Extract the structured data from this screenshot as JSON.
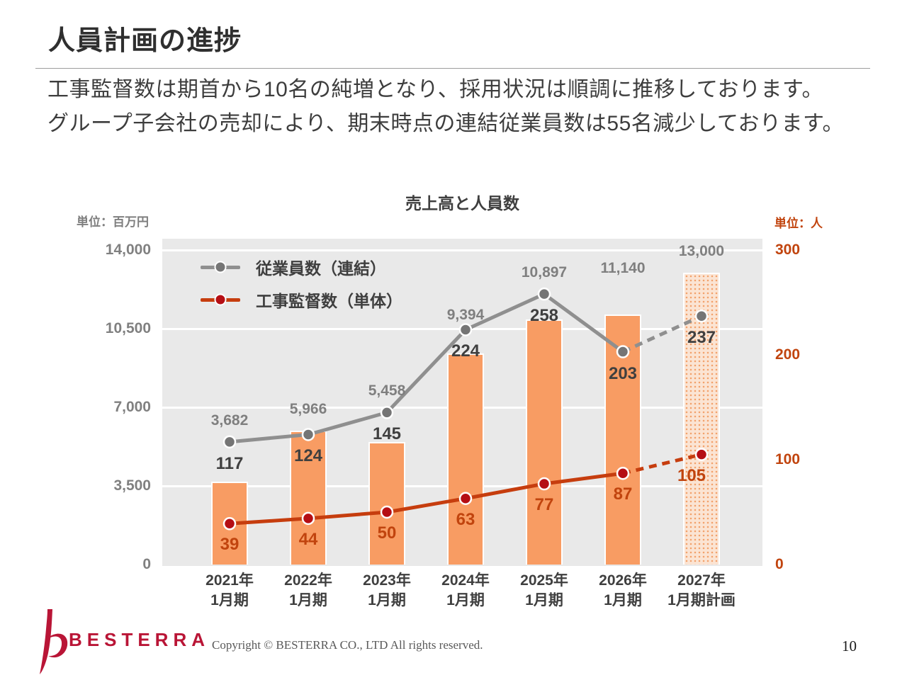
{
  "slide": {
    "title": "人員計画の進捗",
    "subtitle_line1": "工事監督数は期首から10名の純増となり、採用状況は順調に推移しております。",
    "subtitle_line2": "グループ子会社の売却により、期末時点の連結従業員数は55名減少しております。",
    "page_number": "10"
  },
  "footer": {
    "logo_text": "BESTERRA",
    "copyright": "Copyright © BESTERRA CO., LTD All rights reserved."
  },
  "chart_data": {
    "type": "bar",
    "title": "売上高と人員数",
    "categories": [
      {
        "line1": "2021年",
        "line2": "1月期"
      },
      {
        "line1": "2022年",
        "line2": "1月期"
      },
      {
        "line1": "2023年",
        "line2": "1月期"
      },
      {
        "line1": "2024年",
        "line2": "1月期"
      },
      {
        "line1": "2025年",
        "line2": "1月期"
      },
      {
        "line1": "2026年",
        "line2": "1月期"
      },
      {
        "line1": "2027年",
        "line2": "1月期計画"
      }
    ],
    "left_axis": {
      "unit_label": "単位：百万円",
      "max": 14000,
      "ticks": [
        {
          "label": "14,000",
          "value": 14000
        },
        {
          "label": "10,500",
          "value": 10500
        },
        {
          "label": "7,000",
          "value": 7000
        },
        {
          "label": "3,500",
          "value": 3500
        },
        {
          "label": "0",
          "value": 0
        }
      ]
    },
    "right_axis": {
      "unit_label": "単位：人",
      "max": 300,
      "ticks": [
        {
          "label": "300",
          "value": 300
        },
        {
          "label": "200",
          "value": 200
        },
        {
          "label": "100",
          "value": 100
        },
        {
          "label": "0",
          "value": 0
        }
      ]
    },
    "bars": {
      "name": "売上高",
      "axis": "left",
      "values": [
        3682,
        5966,
        5458,
        9394,
        10897,
        11140,
        13000
      ],
      "labels": [
        "3,682",
        "5,966",
        "5,458",
        "9,394",
        "10,897",
        "11,140",
        "13,000"
      ],
      "last_is_plan": true
    },
    "series": [
      {
        "id": "employees",
        "name": "従業員数（連結）",
        "axis": "right",
        "values": [
          117,
          124,
          145,
          224,
          258,
          203,
          237
        ],
        "labels": [
          "117",
          "124",
          "145",
          "224",
          "258",
          "203",
          "237"
        ],
        "last_segment_dashed": true
      },
      {
        "id": "supervisors",
        "name": "工事監督数（単体）",
        "axis": "right",
        "values": [
          39,
          44,
          50,
          63,
          77,
          87,
          105
        ],
        "labels": [
          "39",
          "44",
          "50",
          "63",
          "77",
          "87",
          "105"
        ],
        "last_segment_dashed": true
      }
    ],
    "colors": {
      "bar": "#F89C63",
      "bar_plan_bg": "#FBE4D3",
      "bar_plan_dot": "#F2A26C",
      "plot_background": "#E9E9E9",
      "gridline": "#FFFFFF",
      "employees_line": "#8F8F8F",
      "employees_marker": "#757575",
      "supervisors_line": "#C63D0E",
      "supervisors_marker": "#B50E14",
      "revenue_label": "#7F7F7F",
      "employees_label": "#3F3F3F",
      "supervisors_label": "#C1440E",
      "left_axis_text": "#808080",
      "right_axis_text": "#C1440E",
      "logo_red": "#B91536"
    },
    "legend_position": "top-left-inside",
    "grid": true
  }
}
